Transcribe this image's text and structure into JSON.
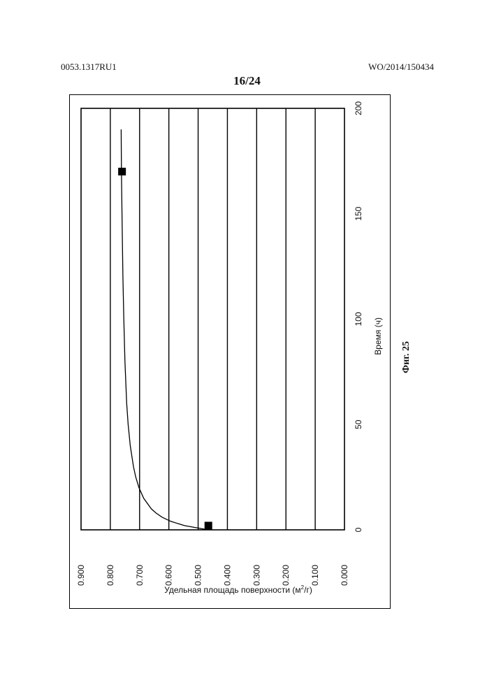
{
  "header": {
    "left": "0053.1317RU1",
    "right": "WO/2014/150434",
    "page": "16/24"
  },
  "caption": "Фиг. 25",
  "chart_data": {
    "type": "line",
    "orientation": "rotated-90-ccw",
    "xlabel": "Время (ч)",
    "ylabel": "Удельная площадь поверхности (м²/г)",
    "xlim": [
      0,
      200
    ],
    "ylim": [
      0.0,
      0.9
    ],
    "x_ticks": [
      "0",
      "50",
      "100",
      "150",
      "200"
    ],
    "y_ticks": [
      "0.000",
      "0.100",
      "0.200",
      "0.300",
      "0.400",
      "0.500",
      "0.600",
      "0.700",
      "0.800",
      "0.900"
    ],
    "grid": "horizontal",
    "series": [
      {
        "style": "line",
        "x": [
          0,
          2,
          4,
          6,
          8,
          10,
          15,
          20,
          25,
          30,
          40,
          50,
          60,
          80,
          100,
          120,
          150,
          170,
          190
        ],
        "y": [
          0.465,
          0.546,
          0.593,
          0.623,
          0.644,
          0.66,
          0.686,
          0.702,
          0.713,
          0.721,
          0.732,
          0.739,
          0.744,
          0.75,
          0.754,
          0.757,
          0.76,
          0.762,
          0.763
        ]
      },
      {
        "style": "markers",
        "x": [
          2,
          170
        ],
        "y": [
          0.465,
          0.76
        ]
      }
    ]
  }
}
